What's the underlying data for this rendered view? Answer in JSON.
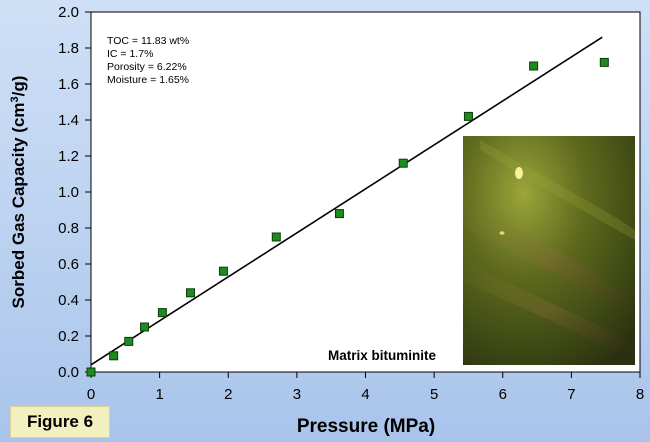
{
  "figure_label": "Figure 6",
  "annotations": [
    "TOC = 11.83 wt%",
    "IC = 1.7%",
    "Porosity = 6.22%",
    "Moisture = 1.65%"
  ],
  "inset": {
    "caption": "Matrix bituminite",
    "description_icon": "micrograph-image"
  },
  "colors": {
    "marker": "#1f8a1f",
    "marker_edge": "#0a3d0a",
    "line": "#000000",
    "page_bg": "#b9d0ef",
    "plot_bg": "#ffffff"
  },
  "chart_data": {
    "type": "scatter",
    "xlabel": "Pressure (MPa)",
    "ylabel": "Sorbed Gas Capacity (cm3/g)",
    "ylabel_parts": {
      "before": "Sorbed Gas Capacity (cm",
      "sup": "3",
      "after": "/g)"
    },
    "xlim": [
      0,
      8
    ],
    "ylim": [
      0,
      2.0
    ],
    "x_ticks": [
      "0",
      "1",
      "2",
      "3",
      "4",
      "5",
      "6",
      "7",
      "8"
    ],
    "y_ticks": [
      "0.0",
      "0.2",
      "0.4",
      "0.6",
      "0.8",
      "1.0",
      "1.2",
      "1.4",
      "1.6",
      "1.8",
      "2.0"
    ],
    "grid": false,
    "series": [
      {
        "points": [
          [
            0.0,
            0.0
          ],
          [
            0.33,
            0.09
          ],
          [
            0.55,
            0.17
          ],
          [
            0.78,
            0.25
          ],
          [
            1.04,
            0.33
          ],
          [
            1.45,
            0.44
          ],
          [
            1.93,
            0.56
          ],
          [
            2.7,
            0.75
          ],
          [
            3.62,
            0.88
          ],
          [
            4.55,
            1.16
          ],
          [
            5.5,
            1.42
          ],
          [
            6.45,
            1.7
          ],
          [
            7.48,
            1.72
          ]
        ]
      }
    ],
    "trendline": {
      "x": [
        0.0,
        7.45
      ],
      "y": [
        0.04,
        1.86
      ]
    }
  }
}
